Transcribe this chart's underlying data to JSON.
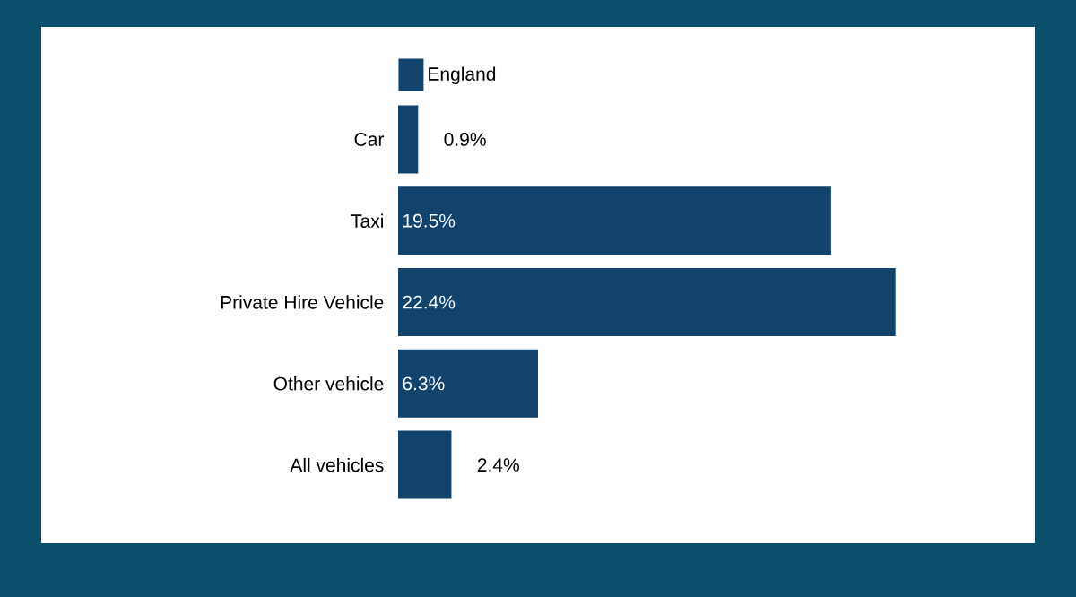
{
  "chart_data": {
    "type": "bar",
    "orientation": "horizontal",
    "categories": [
      "Car",
      "Taxi",
      "Private Hire Vehicle",
      "Other vehicle",
      "All vehicles"
    ],
    "series": [
      {
        "name": "England",
        "color": "#12436d",
        "values": [
          0.9,
          19.5,
          22.4,
          6.3,
          2.4
        ],
        "value_labels": [
          "0.9%",
          "19.5%",
          "22.4%",
          "6.3%",
          "2.4%"
        ]
      }
    ],
    "legend": "top left"
  }
}
